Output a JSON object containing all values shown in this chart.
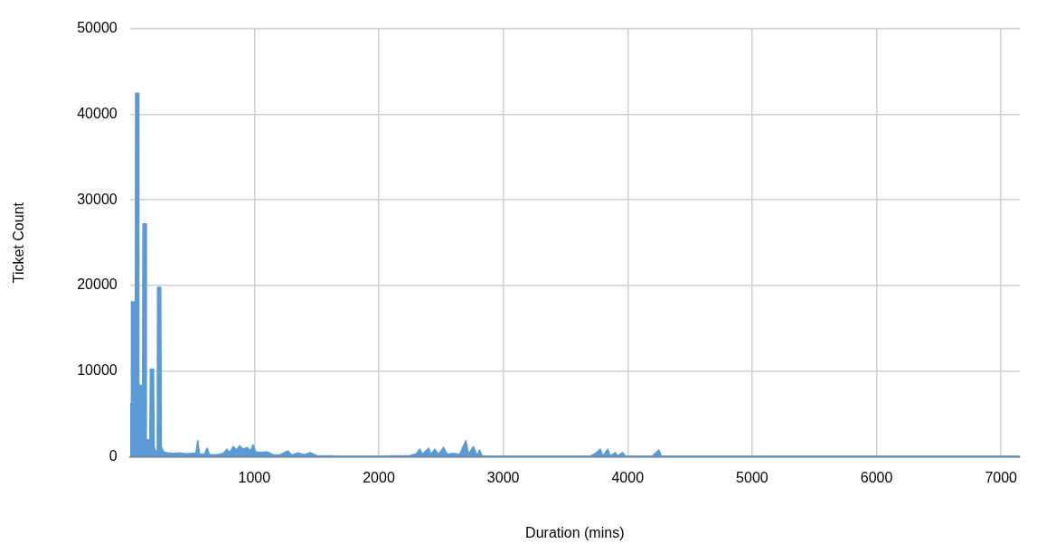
{
  "chart_data": {
    "type": "area",
    "xlabel": "Duration (mins)",
    "ylabel": "Ticket Count",
    "color": "#5b9bd5",
    "x": [
      1,
      10,
      12,
      44,
      46,
      70,
      72,
      102,
      105,
      130,
      132,
      160,
      165,
      190,
      195,
      205,
      220,
      222,
      248,
      252,
      270,
      300,
      350,
      400,
      450,
      500,
      530,
      545,
      560,
      600,
      620,
      640,
      700,
      750,
      780,
      800,
      830,
      860,
      880,
      910,
      940,
      970,
      990,
      1010,
      1050,
      1100,
      1150,
      1200,
      1270,
      1300,
      1350,
      1400,
      1450,
      1500,
      1700,
      2000,
      2250,
      2300,
      2330,
      2350,
      2400,
      2420,
      2450,
      2480,
      2520,
      2550,
      2600,
      2650,
      2700,
      2720,
      2760,
      2790,
      2810,
      2830,
      3000,
      3700,
      3740,
      3780,
      3800,
      3840,
      3860,
      3900,
      3920,
      3960,
      3980,
      4200,
      4250,
      4270,
      5000,
      6000,
      7150
    ],
    "values": [
      6200,
      6200,
      18100,
      18100,
      42450,
      42450,
      8350,
      8350,
      27200,
      27200,
      2000,
      2000,
      10250,
      10250,
      1200,
      700,
      700,
      19800,
      19800,
      1200,
      600,
      450,
      400,
      450,
      350,
      400,
      400,
      1900,
      300,
      350,
      1000,
      250,
      250,
      400,
      900,
      500,
      1200,
      800,
      1300,
      900,
      1100,
      700,
      1400,
      600,
      500,
      600,
      250,
      200,
      700,
      200,
      450,
      250,
      500,
      150,
      100,
      100,
      150,
      350,
      900,
      300,
      1000,
      300,
      900,
      300,
      1100,
      300,
      400,
      300,
      1900,
      300,
      1200,
      150,
      800,
      100,
      100,
      100,
      400,
      900,
      100,
      900,
      100,
      500,
      100,
      500,
      100,
      100,
      800,
      100,
      100,
      100,
      100
    ],
    "xlim": [
      0,
      7150
    ],
    "xticks": [
      1000,
      2000,
      3000,
      4000,
      5000,
      6000,
      7000
    ],
    "ylim": [
      0,
      50000
    ],
    "yticks": [
      0,
      10000,
      20000,
      30000,
      40000,
      50000
    ],
    "grid": true
  }
}
